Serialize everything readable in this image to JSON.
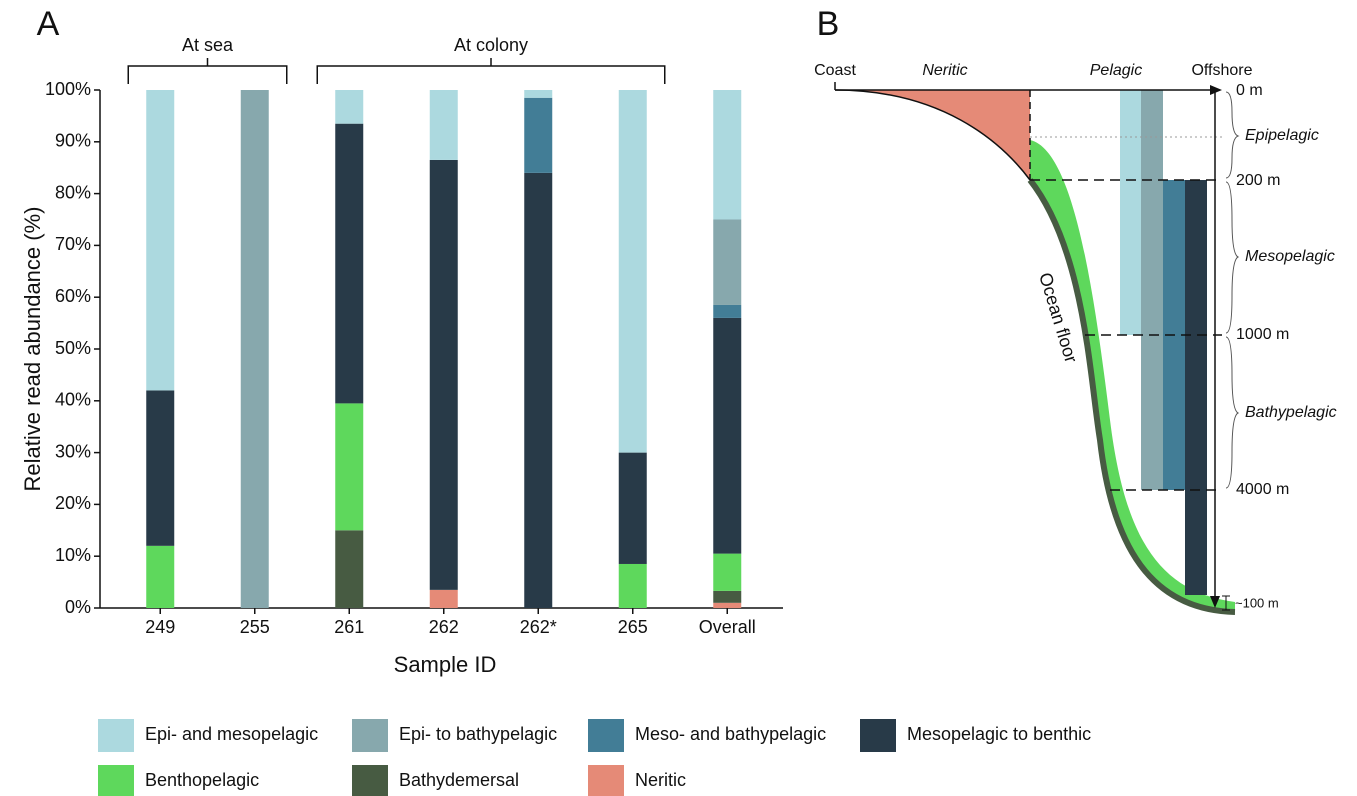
{
  "chart_data": {
    "type": "stacked_bar",
    "panel_label": "A",
    "x_label": "Sample ID",
    "y_label": "Relative read abundance (%)",
    "categories": [
      "249",
      "255",
      "261",
      "262",
      "262*",
      "265",
      "Overall"
    ],
    "groups": [
      {
        "label": "At sea"
      },
      {
        "label": "At colony"
      }
    ],
    "ylim": [
      0,
      100
    ],
    "yticks": [
      {
        "value": 0,
        "label": "0%"
      },
      {
        "value": 10,
        "label": "10%"
      },
      {
        "value": 20,
        "label": "20%"
      },
      {
        "value": 30,
        "label": "30%"
      },
      {
        "value": 40,
        "label": "40%"
      },
      {
        "value": 50,
        "label": "50%"
      },
      {
        "value": 60,
        "label": "60%"
      },
      {
        "value": 70,
        "label": "70%"
      },
      {
        "value": 80,
        "label": "80%"
      },
      {
        "value": 90,
        "label": "90%"
      },
      {
        "value": 100,
        "label": "100%"
      }
    ],
    "series": [
      {
        "name": "Epi- and mesopelagic",
        "color": "#acd9df",
        "values": [
          58,
          0,
          6.5,
          13.5,
          1.5,
          70,
          25
        ]
      },
      {
        "name": "Epi- to bathypelagic",
        "color": "#87a8ad",
        "values": [
          0,
          100,
          0,
          0,
          0,
          0,
          16.5
        ]
      },
      {
        "name": "Meso- and bathypelagic",
        "color": "#427d96",
        "values": [
          0,
          0,
          0,
          0,
          14.5,
          0,
          2.5
        ]
      },
      {
        "name": "Mesopelagic to benthic",
        "color": "#283a48",
        "values": [
          30,
          0,
          54,
          83,
          84,
          21.5,
          45.5
        ]
      },
      {
        "name": "Benthopelagic",
        "color": "#5ed85c",
        "values": [
          12,
          0,
          24.5,
          0,
          0,
          8.5,
          7.2
        ]
      },
      {
        "name": "Bathydemersal",
        "color": "#475b42",
        "values": [
          0,
          0,
          15,
          0,
          0,
          0,
          2.3
        ]
      },
      {
        "name": "Neritic",
        "color": "#e58a77",
        "values": [
          0,
          0,
          0,
          3.5,
          0,
          0,
          1
        ]
      }
    ]
  },
  "diagram": {
    "panel_label": "B",
    "coast": "Coast",
    "neritic": "Neritic",
    "pelagic": "Pelagic",
    "offshore": "Offshore",
    "depths": [
      "0 m",
      "200 m",
      "1000 m",
      "4000 m"
    ],
    "zones": [
      "Epipelagic",
      "Mesopelagic",
      "Bathypelagic"
    ],
    "floor_thickness": "~100 m",
    "ocean_floor": "Ocean floor"
  }
}
